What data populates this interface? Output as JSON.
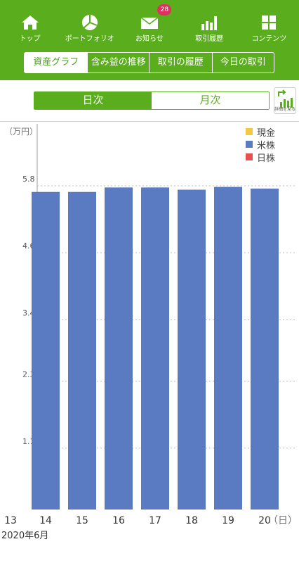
{
  "nav": {
    "items": [
      {
        "label": "トップ",
        "icon": "home-icon"
      },
      {
        "label": "ポートフォリオ",
        "icon": "pie-chart-icon"
      },
      {
        "label": "お知らせ",
        "icon": "mail-icon",
        "badge": "28"
      },
      {
        "label": "取引履歴",
        "icon": "bar-chart-icon"
      },
      {
        "label": "コンテンツ",
        "icon": "grid-icon"
      }
    ]
  },
  "subtabs": [
    "資産グラフ",
    "含み益の推移",
    "取引の履歴",
    "今日の取引"
  ],
  "segment": {
    "daily": "日次",
    "monthly": "月次"
  },
  "detail_button": {
    "label": "詳細を見る"
  },
  "colors": {
    "accent": "#5aad1c",
    "bar": "#5a7ac2",
    "cash": "#f5c842",
    "us_stock": "#5a7ac2",
    "jp_stock": "#e85050"
  },
  "chart_data": {
    "type": "bar",
    "unit_label": "（万円）",
    "x_unit": "（日）",
    "period_label": "2020年6月",
    "categories": [
      "13",
      "14",
      "15",
      "16",
      "17",
      "18",
      "19",
      "20"
    ],
    "series": [
      {
        "name": "現金",
        "values": [
          null,
          0,
          0,
          0,
          0,
          0,
          0,
          0
        ]
      },
      {
        "name": "米株",
        "values": [
          null,
          5.69,
          5.69,
          5.77,
          5.77,
          5.73,
          5.78,
          5.75
        ]
      },
      {
        "name": "日株",
        "values": [
          null,
          0,
          0,
          0,
          0,
          0,
          0,
          0
        ]
      }
    ],
    "y_ticks": [
      "1.1",
      "2.3",
      "3.4",
      "4.6",
      "5.8"
    ],
    "ylim": [
      0,
      5.8
    ],
    "grid": true,
    "legend_position": "top-right"
  }
}
